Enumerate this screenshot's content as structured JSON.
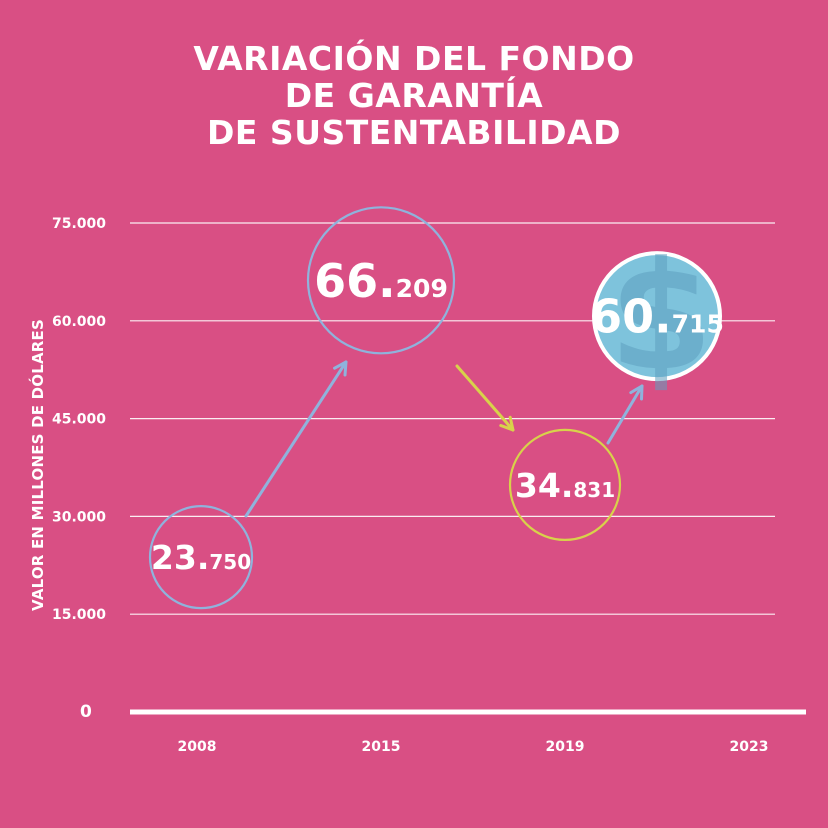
{
  "chart_data": {
    "type": "scatter",
    "title_lines": [
      "VARIACIÓN DEL FONDO",
      "DE GARANTÍA",
      "DE SUSTENTABILIDAD"
    ],
    "xlabel": "",
    "ylabel": "VALOR EN MILLONES DE DÓLARES",
    "categories": [
      "2008",
      "2015",
      "2019",
      "2023"
    ],
    "yticks": [
      "0",
      "15.000",
      "30.000",
      "45.000",
      "60.000",
      "75.000"
    ],
    "ylim": [
      0,
      75000
    ],
    "grid": true,
    "points": [
      {
        "year": "2008",
        "value": 23750,
        "label_main": "23.",
        "label_small": "750",
        "ring_color": "#8fb3dc",
        "fill": "none"
      },
      {
        "year": "2015",
        "value": 66209,
        "label_main": "66.",
        "label_small": "209",
        "ring_color": "#8fb3dc",
        "fill": "none"
      },
      {
        "year": "2019",
        "value": 34831,
        "label_main": "34.",
        "label_small": "831",
        "ring_color": "#d8d24a",
        "fill": "none"
      },
      {
        "year": "2023",
        "value": 60715,
        "label_main": "60.",
        "label_small": "715",
        "ring_color": "#ffffff",
        "fill": "#7ec3dc",
        "icon": "dollar-sign-icon"
      }
    ],
    "arrows": [
      {
        "from": "2008",
        "to": "2015",
        "color": "#8fb3dc"
      },
      {
        "from": "2015",
        "to": "2019",
        "color": "#d8d24a"
      },
      {
        "from": "2019",
        "to": "2023",
        "color": "#8fb3dc"
      }
    ],
    "colors": {
      "background": "#d94f84",
      "grid": "#ffffff",
      "text": "#ffffff"
    }
  }
}
